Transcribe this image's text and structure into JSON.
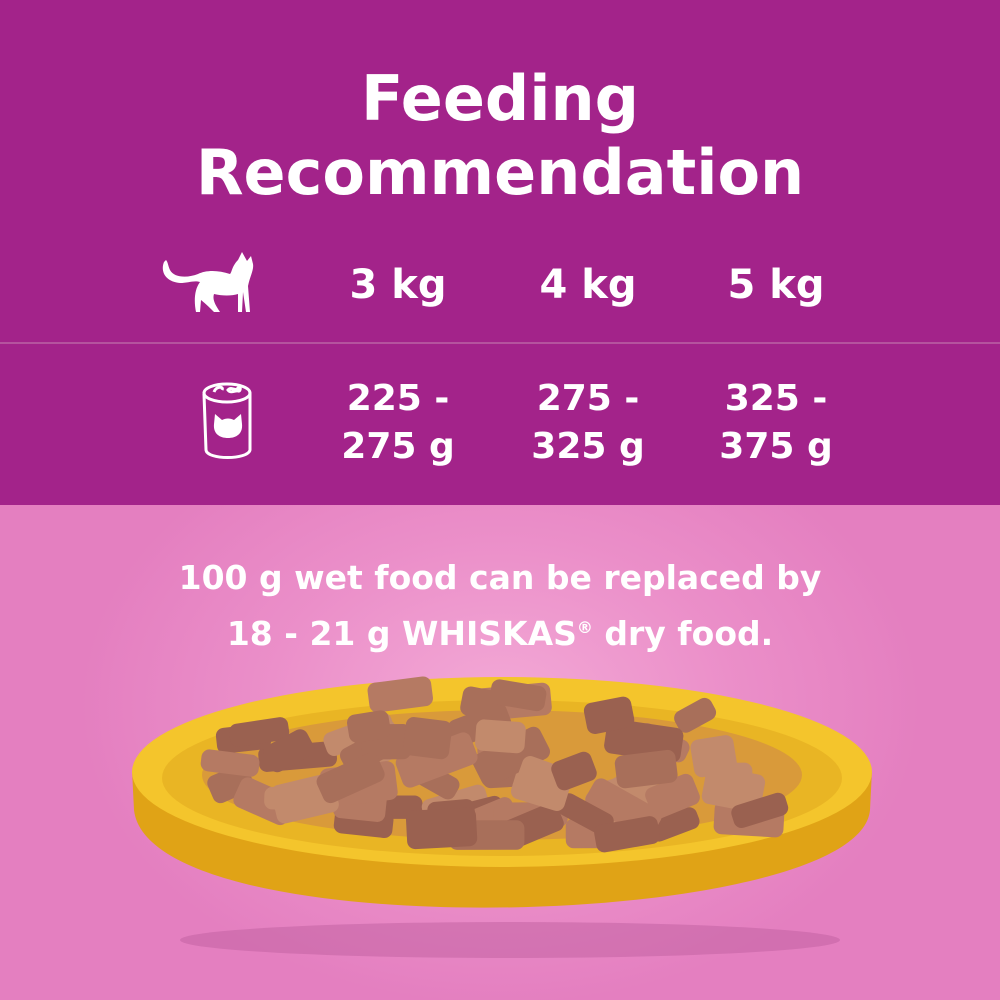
{
  "title_line1": "Feeding",
  "title_line2": "Recommendation",
  "icons": {
    "row1": "cat-silhouette-icon",
    "row2": "food-can-icon"
  },
  "weights": [
    "3 kg",
    "4 kg",
    "5 kg"
  ],
  "amounts": [
    {
      "line1": "225 -",
      "line2": "275 g"
    },
    {
      "line1": "275 -",
      "line2": "325 g"
    },
    {
      "line1": "325 -",
      "line2": "375 g"
    }
  ],
  "note": {
    "line1": "100 g wet food can be replaced by",
    "line2_pre": "18 - 21 g WHISKAS",
    "registered": "®",
    "line2_post": " dry food."
  },
  "colors": {
    "purple": "#a3238a",
    "pink": "#e884c4",
    "bowl": "#f2c02a"
  }
}
